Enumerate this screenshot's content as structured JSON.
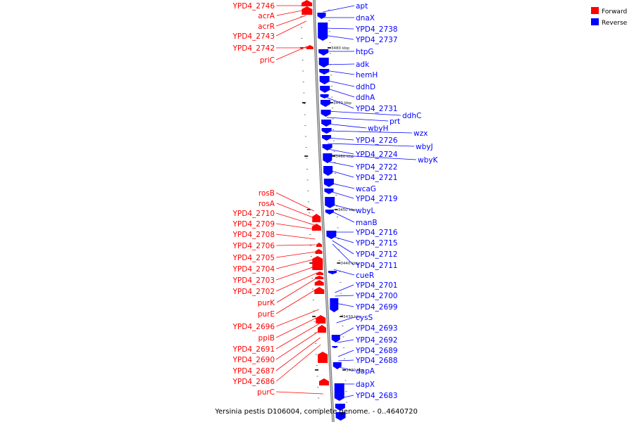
{
  "caption": "Yersinia pestis D106004, complete genome. - 0..4640720",
  "legend": [
    {
      "label": "Forward",
      "color": "#ff0000"
    },
    {
      "label": "Reverse",
      "color": "#0000ff"
    }
  ],
  "colors": {
    "forward": "#ff0000",
    "reverse": "#0000ff",
    "backbone": "#999999"
  },
  "ticks": [
    "3480 kbp",
    "3470 kbp",
    "3460 kbp",
    "3450 kbp",
    "3440 kbp",
    "3430 kbp",
    "3420 kbp"
  ],
  "forward_genes": [
    "YPD4_2746",
    "acrA",
    "acrR",
    "YPD4_2743",
    "YPD4_2742",
    "priC",
    "rosB",
    "rosA",
    "YPD4_2710",
    "YPD4_2709",
    "YPD4_2708",
    "YPD4_2706",
    "YPD4_2705",
    "YPD4_2704",
    "YPD4_2703",
    "YPD4_2702",
    "purK",
    "purE",
    "YPD4_2696",
    "ppiB",
    "YPD4_2691",
    "YPD4_2690",
    "YPD4_2687",
    "YPD4_2686",
    "purC"
  ],
  "reverse_genes": [
    "apt",
    "dnaX",
    "YPD4_2738",
    "YPD4_2737",
    "htpG",
    "adk",
    "hemH",
    "ddhD",
    "ddhA",
    "YPD4_2731",
    "ddhC",
    "prt",
    "wbyH",
    "wzx",
    "YPD4_2726",
    "wbyJ",
    "YPD4_2724",
    "wbyK",
    "YPD4_2722",
    "YPD4_2721",
    "wcaG",
    "YPD4_2719",
    "wbyL",
    "manB",
    "YPD4_2716",
    "YPD4_2715",
    "YPD4_2712",
    "YPD4_2711",
    "cueR",
    "YPD4_2701",
    "YPD4_2700",
    "YPD4_2699",
    "cysS",
    "YPD4_2693",
    "YPD4_2692",
    "YPD4_2689",
    "YPD4_2688",
    "dapA",
    "dapX",
    "YPD4_2683"
  ]
}
